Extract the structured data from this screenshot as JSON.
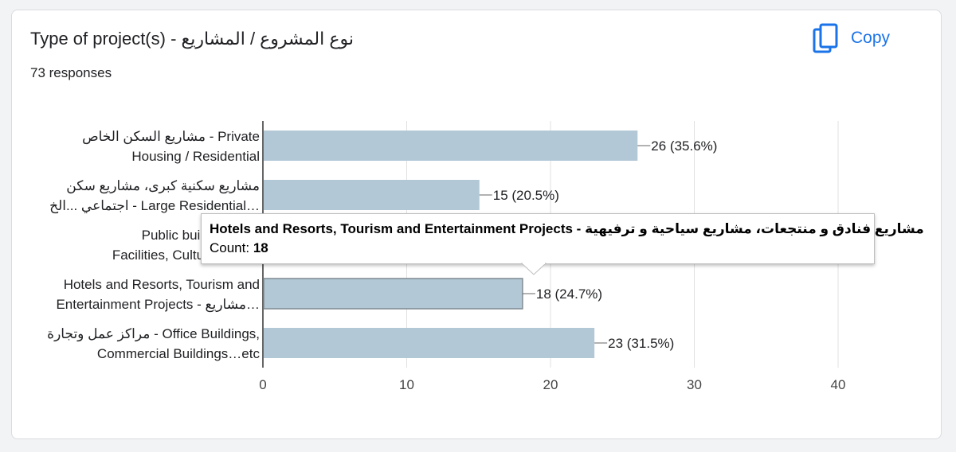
{
  "header": {
    "title": "Type of project(s) -  نوع المشروع / المشاريع",
    "responses": "73 responses",
    "copy_label": "Copy"
  },
  "colors": {
    "bar": "#b2c8d6",
    "accent": "#1a73e8",
    "grid": "#e0e0e0"
  },
  "chart_data": {
    "type": "bar",
    "orientation": "horizontal",
    "categories": [
      [
        "مشاريع السكن الخاص - Private",
        "Housing / Residential"
      ],
      [
        "مشاريع سكنية كبرى، مشاريع سكن",
        "اجتماعي ...الخ - Large Residential…"
      ],
      [
        "Public buildings, Ed",
        "Facilities, Cultural, Muse"
      ],
      [
        "Hotels and Resorts, Tourism and",
        "Entertainment Projects - مشاريع…"
      ],
      [
        "مراكز عمل وتجارة - Office Buildings,",
        "Commercial Buildings…etc"
      ]
    ],
    "values": [
      26,
      15,
      0,
      18,
      23
    ],
    "value_labels": [
      "26 (35.6%)",
      "15 (20.5%)",
      "",
      "18 (24.7%)",
      "23 (31.5%)"
    ],
    "xlim": [
      0,
      40
    ],
    "xticks": [
      "0",
      "10",
      "20",
      "30",
      "40"
    ],
    "highlighted_index": 3,
    "grid": true
  },
  "tooltip": {
    "title": "Hotels and Resorts, Tourism and Entertainment Projects - مشاريع فنادق و منتجعات، مشاريع سياحية و ترفيهية",
    "count_label": "Count:",
    "count_value": "18"
  }
}
